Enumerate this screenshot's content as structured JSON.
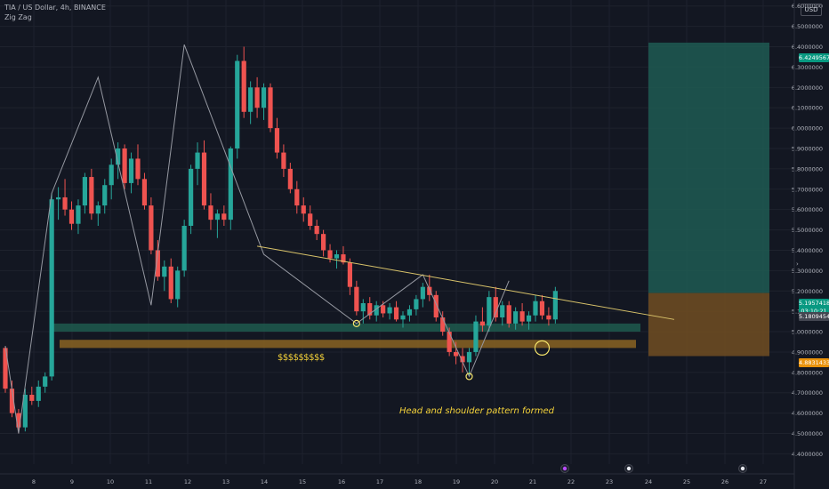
{
  "header": {
    "symbol_line": "TIA / US Dollar, 4h, BINANCE",
    "indicator": "Zig Zag",
    "currency": "USD"
  },
  "annotations": {
    "dollars": "$$$$$$$$$",
    "pattern": "Head and shoulder pattern formed"
  },
  "price_tags": {
    "target": "6.4249567",
    "current": "5.1957418",
    "countdown": "03:10:21",
    "ref": "5.1809454",
    "stop": "4.8831433"
  },
  "colors": {
    "background": "#131722",
    "up": "#26a69a",
    "down": "#ef5350",
    "target_zone": "#1f5a52",
    "stop_zone": "#6b4a22",
    "support_band": "#1e5a4e",
    "liquidity_band": "#8a6322",
    "trendline": "#d9c36a",
    "zigzag": "#9598a1",
    "text_accent": "#f5d33a"
  },
  "chart_data": {
    "type": "candlestick",
    "title": "TIA / US Dollar, 4h, BINANCE",
    "ylim": [
      4.38,
      6.66
    ],
    "y_ticks": [
      "4.4000000",
      "4.5000000",
      "4.6000000",
      "4.7000000",
      "4.8000000",
      "4.9000000",
      "5.0000000",
      "5.1000000",
      "5.2000000",
      "5.3000000",
      "5.4000000",
      "5.5000000",
      "5.6000000",
      "5.7000000",
      "5.8000000",
      "5.9000000",
      "6.0000000",
      "6.1000000",
      "6.2000000",
      "6.3000000",
      "6.4000000",
      "6.5000000",
      "6.6000000"
    ],
    "x_ticks": [
      "8",
      "9",
      "10",
      "11",
      "12",
      "13",
      "14",
      "15",
      "16",
      "17",
      "18",
      "19",
      "20",
      "21",
      "22",
      "23",
      "24",
      "25",
      "26",
      "27"
    ],
    "candles": [
      [
        4.92,
        4.93,
        4.7,
        4.72
      ],
      [
        4.72,
        4.76,
        4.58,
        4.6
      ],
      [
        4.6,
        4.62,
        4.5,
        4.53
      ],
      [
        4.53,
        4.72,
        4.51,
        4.69
      ],
      [
        4.69,
        4.73,
        4.64,
        4.66
      ],
      [
        4.66,
        4.76,
        4.63,
        4.73
      ],
      [
        4.73,
        4.8,
        4.7,
        4.78
      ],
      [
        4.78,
        5.68,
        4.76,
        5.65
      ],
      [
        5.65,
        5.71,
        5.55,
        5.66
      ],
      [
        5.66,
        5.75,
        5.57,
        5.6
      ],
      [
        5.6,
        5.64,
        5.5,
        5.53
      ],
      [
        5.53,
        5.65,
        5.48,
        5.62
      ],
      [
        5.62,
        5.78,
        5.58,
        5.76
      ],
      [
        5.76,
        5.8,
        5.55,
        5.58
      ],
      [
        5.58,
        5.64,
        5.52,
        5.62
      ],
      [
        5.62,
        5.75,
        5.58,
        5.72
      ],
      [
        5.72,
        5.85,
        5.65,
        5.82
      ],
      [
        5.82,
        5.93,
        5.75,
        5.9
      ],
      [
        5.9,
        5.92,
        5.7,
        5.73
      ],
      [
        5.73,
        5.88,
        5.68,
        5.85
      ],
      [
        5.85,
        5.92,
        5.72,
        5.75
      ],
      [
        5.75,
        5.78,
        5.6,
        5.62
      ],
      [
        5.62,
        5.66,
        5.38,
        5.4
      ],
      [
        5.4,
        5.45,
        5.25,
        5.27
      ],
      [
        5.27,
        5.35,
        5.2,
        5.32
      ],
      [
        5.32,
        5.36,
        5.14,
        5.16
      ],
      [
        5.16,
        5.32,
        5.12,
        5.3
      ],
      [
        5.3,
        5.55,
        5.27,
        5.52
      ],
      [
        5.52,
        5.82,
        5.48,
        5.8
      ],
      [
        5.8,
        5.93,
        5.72,
        5.88
      ],
      [
        5.88,
        5.94,
        5.6,
        5.62
      ],
      [
        5.62,
        5.68,
        5.5,
        5.55
      ],
      [
        5.55,
        5.6,
        5.46,
        5.58
      ],
      [
        5.58,
        5.62,
        5.52,
        5.55
      ],
      [
        5.55,
        5.91,
        5.5,
        5.9
      ],
      [
        5.9,
        6.36,
        5.85,
        6.33
      ],
      [
        6.33,
        6.4,
        6.05,
        6.08
      ],
      [
        6.08,
        6.23,
        6.02,
        6.2
      ],
      [
        6.2,
        6.25,
        6.05,
        6.1
      ],
      [
        6.1,
        6.22,
        6.04,
        6.2
      ],
      [
        6.2,
        6.22,
        5.98,
        6.0
      ],
      [
        6.0,
        6.05,
        5.85,
        5.88
      ],
      [
        5.88,
        5.92,
        5.76,
        5.8
      ],
      [
        5.8,
        5.83,
        5.68,
        5.7
      ],
      [
        5.7,
        5.74,
        5.58,
        5.62
      ],
      [
        5.62,
        5.66,
        5.54,
        5.58
      ],
      [
        5.58,
        5.62,
        5.5,
        5.52
      ],
      [
        5.52,
        5.55,
        5.45,
        5.48
      ],
      [
        5.48,
        5.5,
        5.37,
        5.4
      ],
      [
        5.4,
        5.43,
        5.34,
        5.36
      ],
      [
        5.36,
        5.4,
        5.31,
        5.38
      ],
      [
        5.38,
        5.42,
        5.33,
        5.34
      ],
      [
        5.34,
        5.36,
        5.18,
        5.22
      ],
      [
        5.22,
        5.25,
        5.08,
        5.1
      ],
      [
        5.1,
        5.16,
        5.04,
        5.14
      ],
      [
        5.14,
        5.17,
        5.06,
        5.08
      ],
      [
        5.08,
        5.15,
        5.05,
        5.13
      ],
      [
        5.13,
        5.15,
        5.07,
        5.09
      ],
      [
        5.09,
        5.14,
        5.06,
        5.12
      ],
      [
        5.12,
        5.15,
        5.05,
        5.06
      ],
      [
        5.06,
        5.1,
        5.02,
        5.08
      ],
      [
        5.08,
        5.13,
        5.05,
        5.11
      ],
      [
        5.11,
        5.18,
        5.08,
        5.16
      ],
      [
        5.16,
        5.24,
        5.12,
        5.22
      ],
      [
        5.22,
        5.28,
        5.15,
        5.18
      ],
      [
        5.18,
        5.2,
        5.05,
        5.07
      ],
      [
        5.07,
        5.1,
        4.98,
        5.0
      ],
      [
        5.0,
        5.02,
        4.88,
        4.9
      ],
      [
        4.9,
        4.95,
        4.84,
        4.88
      ],
      [
        4.88,
        4.92,
        4.8,
        4.85
      ],
      [
        4.85,
        4.92,
        4.78,
        4.9
      ],
      [
        4.9,
        5.08,
        4.88,
        5.05
      ],
      [
        5.05,
        5.12,
        5.0,
        5.03
      ],
      [
        5.03,
        5.2,
        5.0,
        5.17
      ],
      [
        5.17,
        5.22,
        5.05,
        5.07
      ],
      [
        5.07,
        5.15,
        5.03,
        5.13
      ],
      [
        5.13,
        5.15,
        5.02,
        5.04
      ],
      [
        5.04,
        5.12,
        5.01,
        5.1
      ],
      [
        5.1,
        5.14,
        5.03,
        5.05
      ],
      [
        5.05,
        5.1,
        5.01,
        5.08
      ],
      [
        5.08,
        5.18,
        5.05,
        5.15
      ],
      [
        5.15,
        5.18,
        5.06,
        5.08
      ],
      [
        5.08,
        5.12,
        5.03,
        5.06
      ],
      [
        5.06,
        5.22,
        5.04,
        5.2
      ]
    ],
    "zigzag": [
      [
        0,
        4.93
      ],
      [
        2,
        4.5
      ],
      [
        7,
        5.68
      ],
      [
        14,
        6.25
      ],
      [
        22,
        5.13
      ],
      [
        27,
        6.41
      ],
      [
        39,
        5.38
      ],
      [
        53,
        5.04
      ],
      [
        63,
        5.28
      ],
      [
        70,
        4.78
      ],
      [
        76,
        5.25
      ]
    ],
    "neckline": [
      [
        38,
        5.42
      ],
      [
        86,
        5.07
      ]
    ],
    "support_band": [
      5.0,
      5.04
    ],
    "liquidity_band": [
      4.92,
      4.96
    ],
    "markers": [
      [
        53,
        5.04
      ],
      [
        70,
        4.78
      ],
      [
        81,
        4.92
      ]
    ],
    "target_zone": [
      5.19,
      6.42
    ],
    "stop_zone": [
      4.88,
      5.19
    ]
  }
}
